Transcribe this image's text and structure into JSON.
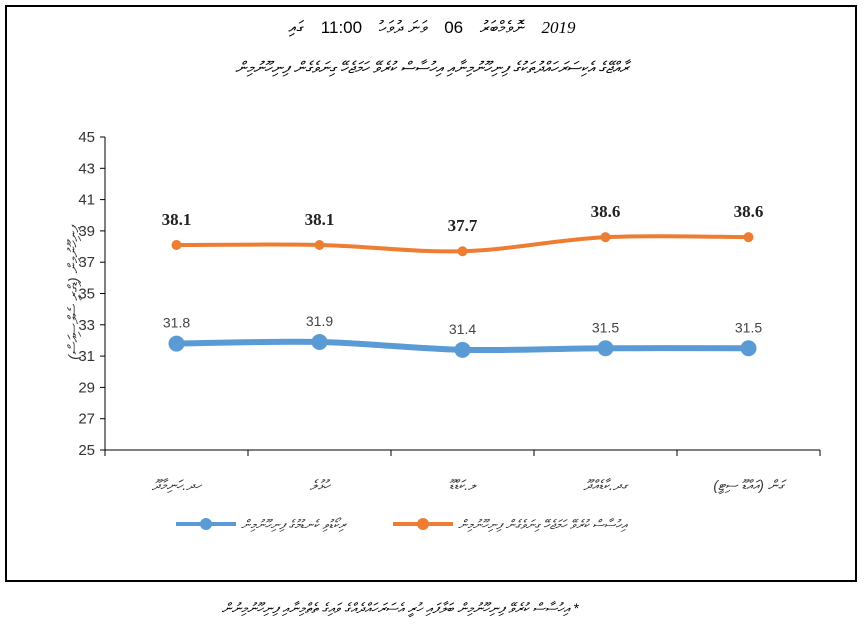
{
  "header": {
    "year": "2019",
    "month": "ނޮވެމްބަރު",
    "day": "06",
    "day_word": "ވަނަ ދުވަހު",
    "time": "11:00",
    "time_suffix": "ގައި",
    "subtitle": "ރާއްޖޭގެ އެކިސަރަހައްދުތަކުގެ ފިނިހޫނުމިނާއި އިހުސާސް ކުރެވޭ ހަމަޖެހޭ ގިނަވެގެން ފިނިހޫނުމިން"
  },
  "footnote": "* އިހުސާސް ކުރެވޭ ފިނިހޫނުމިން ބަލާފައި ހުރީ އެސަރަހައްދެއްގެ ވައިގެ ތެތްމިނާއި ފިނިހޫނުމިނުން",
  "colors": {
    "orange": "#ED7D31",
    "blue": "#5B9BD5"
  },
  "chart_data": {
    "type": "line",
    "title": "ރާއްޖޭގެ އެކިސަރަހައްދުތަކުގެ ފިނިހޫނުމިނާއި އިހުސާސް ކުރެވޭ ހަމަޖެހޭ ގިނަވެގެން ފިނިހޫނުމިން",
    "ylabel": "ފިނިހޫނުމިން (ޑިގްރީ ސެލްސިއަސް)",
    "xlabel": "",
    "categories": [
      "ހދ.ހަނިމާދޫ",
      "ހުޅުލެ",
      "ލ.ކަޑްޑޫ",
      "ގދ.ކާޑެއްދޫ",
      "ގަން (އައްޑޫ ސިޓީ)"
    ],
    "ylim": [
      25,
      45
    ],
    "yticks": [
      "25",
      "27",
      "29",
      "31",
      "33",
      "35",
      "37",
      "39",
      "41",
      "43",
      "45"
    ],
    "series": [
      {
        "name": "އިހުސާސް ކުރެވޭ ހަމަޖެހޭ ގިނަވެގެން ފިނިހޫނުމިން",
        "color": "#ED7D31",
        "values": [
          38.1,
          38.1,
          37.7,
          38.6,
          38.6
        ],
        "labels": [
          "38.1",
          "38.1",
          "37.7",
          "38.6",
          "38.6"
        ]
      },
      {
        "name": "ރިކޯޑުވި ކެނޑުމުގެ ފިނިހޫނުމިން",
        "color": "#5B9BD5",
        "values": [
          31.8,
          31.9,
          31.4,
          31.5,
          31.5
        ],
        "labels": [
          "31.8",
          "31.9",
          "31.4",
          "31.5",
          "31.5"
        ]
      }
    ],
    "legend": "bottom",
    "grid": false
  }
}
